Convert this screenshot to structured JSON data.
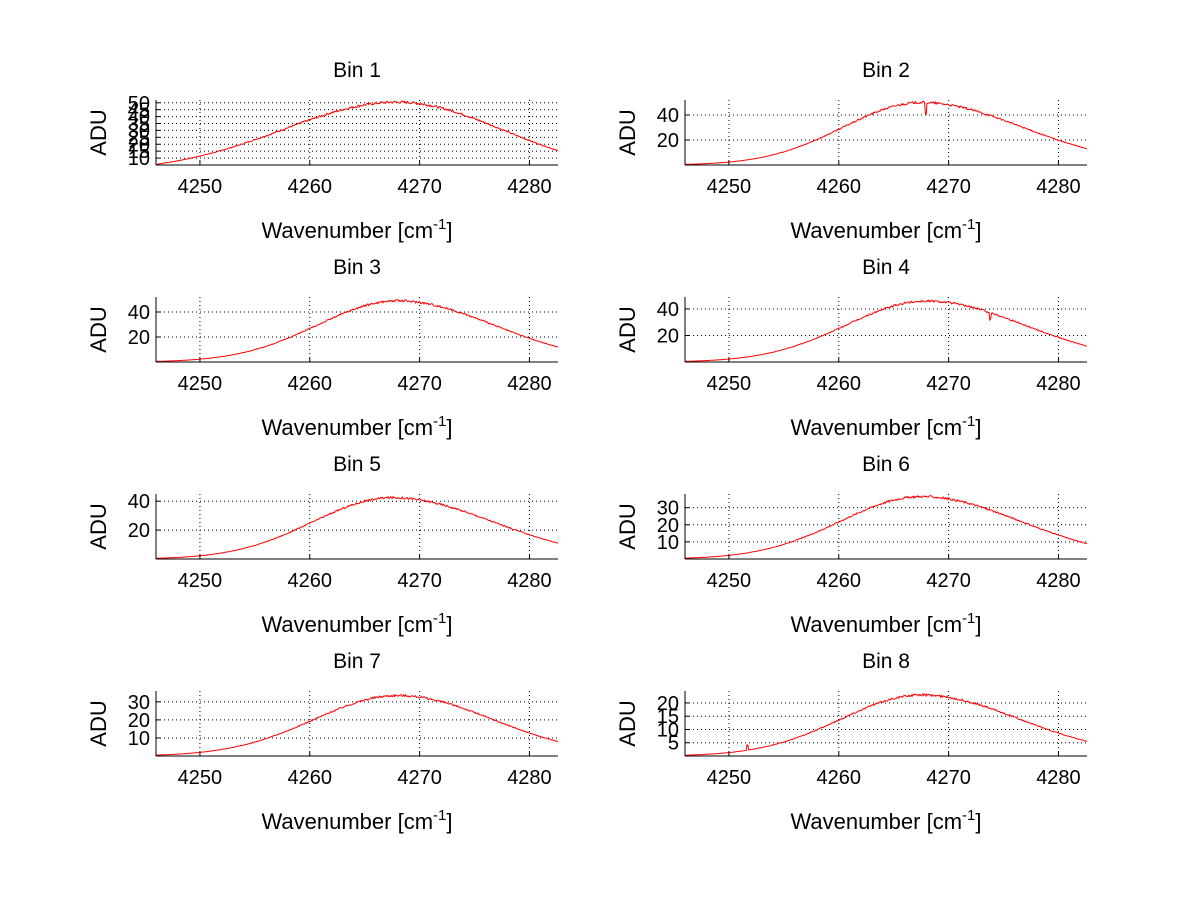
{
  "figure": {
    "background": "#ffffff",
    "line_color": "#ff0000",
    "grid_color": "#000000"
  },
  "chart_data": [
    {
      "type": "line",
      "title": "Bin 1",
      "xlabel": "Wavenumber [cm",
      "xlabel_sup": "-1",
      "xlabel_end": "]",
      "ylabel": "ADU",
      "xlim": [
        4246,
        4282.6
      ],
      "ylim": [
        5,
        52
      ],
      "xticks": [
        4250,
        4260,
        4270,
        4280
      ],
      "yticks": [
        10,
        15,
        20,
        25,
        30,
        35,
        40,
        45,
        50
      ],
      "grid": true,
      "peak_x": 4268,
      "peak": 50.5,
      "edge_left": 5.5,
      "edge_right": 15.5,
      "glitches": []
    },
    {
      "type": "line",
      "title": "Bin 2",
      "xlabel": "Wavenumber [cm",
      "xlabel_sup": "-1",
      "xlabel_end": "]",
      "ylabel": "ADU",
      "xlim": [
        4246,
        4282.6
      ],
      "ylim": [
        0,
        52
      ],
      "xticks": [
        4250,
        4260,
        4270,
        4280
      ],
      "yticks": [
        20,
        40
      ],
      "grid": true,
      "peak_x": 4267.5,
      "peak": 50,
      "edge_left": 0.5,
      "edge_right": 13,
      "glitches": [
        {
          "x": 4267.9,
          "d": -9
        }
      ]
    },
    {
      "type": "line",
      "title": "Bin 3",
      "xlabel": "Wavenumber [cm",
      "xlabel_sup": "-1",
      "xlabel_end": "]",
      "ylabel": "ADU",
      "xlim": [
        4246,
        4282.6
      ],
      "ylim": [
        0,
        52
      ],
      "xticks": [
        4250,
        4260,
        4270,
        4280
      ],
      "yticks": [
        20,
        40
      ],
      "grid": true,
      "peak_x": 4268,
      "peak": 49,
      "edge_left": 0.5,
      "edge_right": 12,
      "glitches": []
    },
    {
      "type": "line",
      "title": "Bin 4",
      "xlabel": "Wavenumber [cm",
      "xlabel_sup": "-1",
      "xlabel_end": "]",
      "ylabel": "ADU",
      "xlim": [
        4246,
        4282.6
      ],
      "ylim": [
        0,
        49
      ],
      "xticks": [
        4250,
        4260,
        4270,
        4280
      ],
      "yticks": [
        20,
        40
      ],
      "grid": true,
      "peak_x": 4268,
      "peak": 46,
      "edge_left": 0.5,
      "edge_right": 12,
      "glitches": [
        {
          "x": 4273.8,
          "d": -5
        }
      ]
    },
    {
      "type": "line",
      "title": "Bin 5",
      "xlabel": "Wavenumber [cm",
      "xlabel_sup": "-1",
      "xlabel_end": "]",
      "ylabel": "ADU",
      "xlim": [
        4246,
        4282.6
      ],
      "ylim": [
        0,
        45
      ],
      "xticks": [
        4250,
        4260,
        4270,
        4280
      ],
      "yticks": [
        20,
        40
      ],
      "grid": true,
      "peak_x": 4267.5,
      "peak": 42.5,
      "edge_left": 0.5,
      "edge_right": 11,
      "glitches": []
    },
    {
      "type": "line",
      "title": "Bin 6",
      "xlabel": "Wavenumber [cm",
      "xlabel_sup": "-1",
      "xlabel_end": "]",
      "ylabel": "ADU",
      "xlim": [
        4246,
        4282.6
      ],
      "ylim": [
        0,
        38
      ],
      "xticks": [
        4250,
        4260,
        4270,
        4280
      ],
      "yticks": [
        10,
        20,
        30
      ],
      "grid": true,
      "peak_x": 4267.5,
      "peak": 36.5,
      "edge_left": 0.5,
      "edge_right": 9,
      "glitches": []
    },
    {
      "type": "line",
      "title": "Bin 7",
      "xlabel": "Wavenumber [cm",
      "xlabel_sup": "-1",
      "xlabel_end": "]",
      "ylabel": "ADU",
      "xlim": [
        4246,
        4282.6
      ],
      "ylim": [
        0,
        36
      ],
      "xticks": [
        4250,
        4260,
        4270,
        4280
      ],
      "yticks": [
        10,
        20,
        30
      ],
      "grid": true,
      "peak_x": 4268,
      "peak": 33.5,
      "edge_left": 0.5,
      "edge_right": 8,
      "glitches": []
    },
    {
      "type": "line",
      "title": "Bin 8",
      "xlabel": "Wavenumber [cm",
      "xlabel_sup": "-1",
      "xlabel_end": "]",
      "ylabel": "ADU",
      "xlim": [
        4246,
        4282.6
      ],
      "ylim": [
        0,
        24.5
      ],
      "xticks": [
        4250,
        4260,
        4270,
        4280
      ],
      "yticks": [
        5,
        10,
        15,
        20
      ],
      "grid": true,
      "peak_x": 4267.5,
      "peak": 23,
      "edge_left": 0.3,
      "edge_right": 5.5,
      "glitches": [
        {
          "x": 4251.7,
          "d": 2
        }
      ]
    }
  ]
}
